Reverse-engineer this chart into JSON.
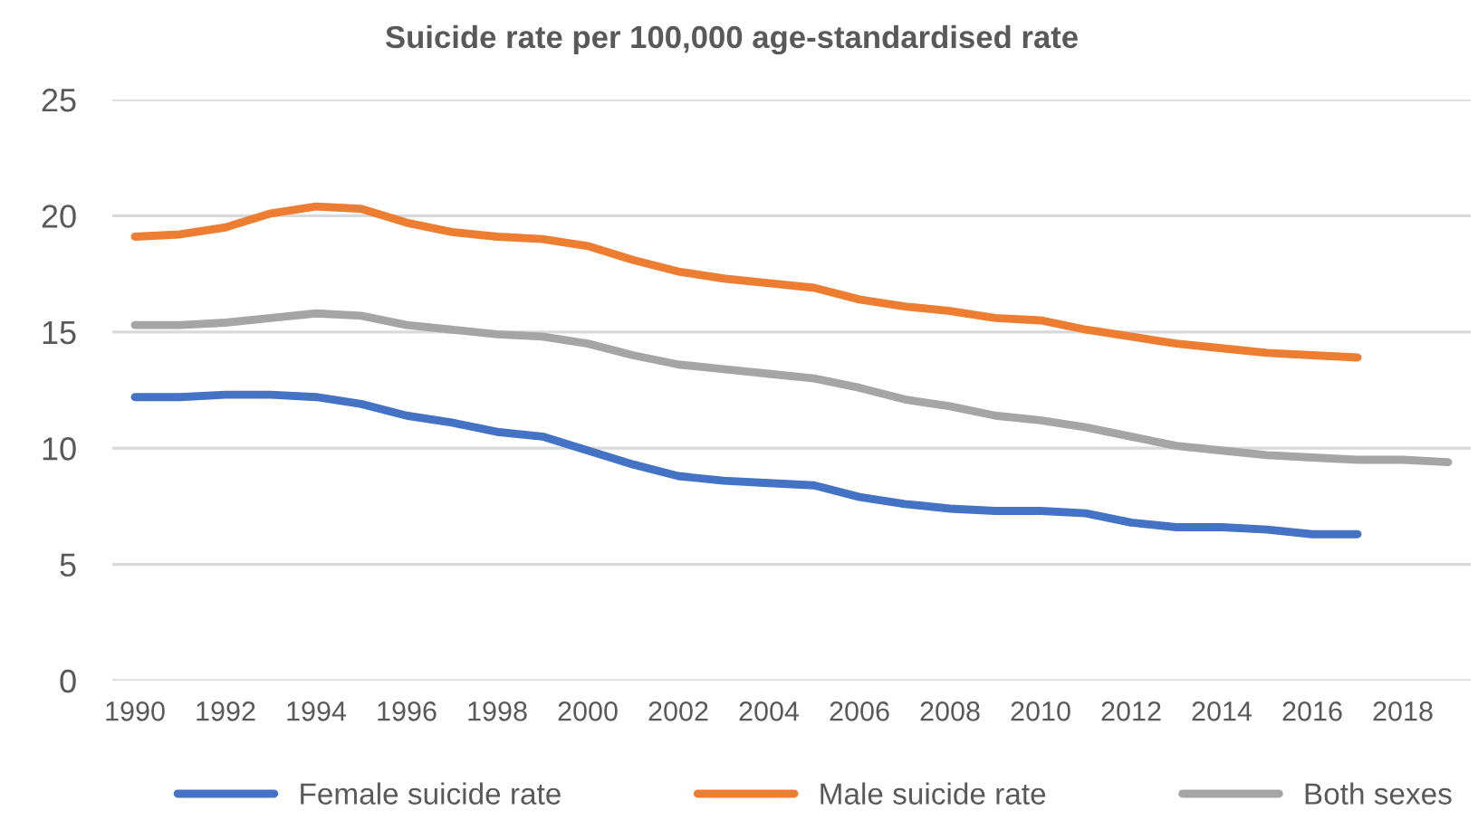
{
  "chart_data": {
    "type": "line",
    "title": "Suicide rate per 100,000 age-standardised rate",
    "x": [
      1990,
      1991,
      1992,
      1993,
      1994,
      1995,
      1996,
      1997,
      1998,
      1999,
      2000,
      2001,
      2002,
      2003,
      2004,
      2005,
      2006,
      2007,
      2008,
      2009,
      2010,
      2011,
      2012,
      2013,
      2014,
      2015,
      2016,
      2017,
      2018,
      2019
    ],
    "xlim": [
      1989.5,
      2019.5
    ],
    "xticks": [
      1990,
      1992,
      1994,
      1996,
      1998,
      2000,
      2002,
      2004,
      2006,
      2008,
      2010,
      2012,
      2014,
      2016,
      2018
    ],
    "ylim": [
      0,
      25
    ],
    "yticks": [
      0,
      5,
      10,
      15,
      20,
      25
    ],
    "grid": "y",
    "legend": "bottom",
    "marker": "none",
    "line_style": "solid",
    "series": [
      {
        "name": "Female suicide rate",
        "color": "#4472c4",
        "values": [
          12.2,
          12.2,
          12.3,
          12.3,
          12.2,
          11.9,
          11.4,
          11.1,
          10.7,
          10.5,
          9.9,
          9.3,
          8.8,
          8.6,
          8.5,
          8.4,
          7.9,
          7.6,
          7.4,
          7.3,
          7.3,
          7.2,
          6.8,
          6.6,
          6.6,
          6.5,
          6.3,
          6.3,
          null,
          null
        ]
      },
      {
        "name": "Male suicide rate",
        "color": "#ed7d31",
        "values": [
          19.1,
          19.2,
          19.5,
          20.1,
          20.4,
          20.3,
          19.7,
          19.3,
          19.1,
          19.0,
          18.7,
          18.1,
          17.6,
          17.3,
          17.1,
          16.9,
          16.4,
          16.1,
          15.9,
          15.6,
          15.5,
          15.1,
          14.8,
          14.5,
          14.3,
          14.1,
          14.0,
          13.9,
          null,
          null
        ]
      },
      {
        "name": "Both sexes",
        "color": "#a5a5a5",
        "values": [
          15.3,
          15.3,
          15.4,
          15.6,
          15.8,
          15.7,
          15.3,
          15.1,
          14.9,
          14.8,
          14.5,
          14.0,
          13.6,
          13.4,
          13.2,
          13.0,
          12.6,
          12.1,
          11.8,
          11.4,
          11.2,
          10.9,
          10.5,
          10.1,
          9.9,
          9.7,
          9.6,
          9.5,
          9.5,
          9.4
        ]
      }
    ]
  }
}
